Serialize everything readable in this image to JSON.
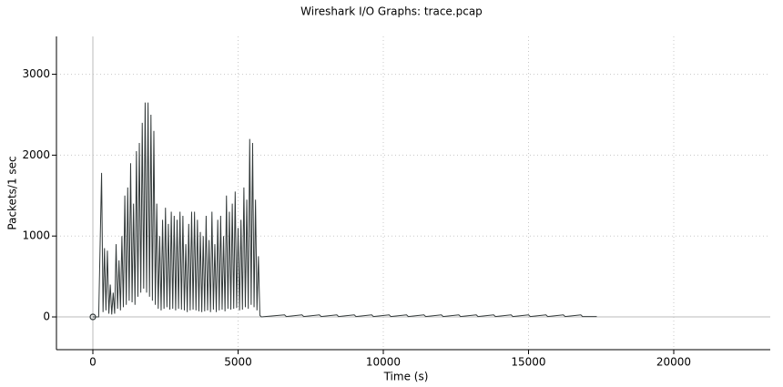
{
  "chart_data": {
    "type": "line",
    "title": "Wireshark I/O Graphs: trace.pcap",
    "xlabel": "Time (s)",
    "ylabel": "Packets/1 sec",
    "x": [
      0,
      200,
      300,
      350,
      400,
      450,
      500,
      550,
      600,
      650,
      700,
      750,
      800,
      850,
      900,
      950,
      1000,
      1050,
      1100,
      1150,
      1200,
      1250,
      1300,
      1350,
      1400,
      1450,
      1500,
      1550,
      1600,
      1650,
      1700,
      1750,
      1800,
      1850,
      1900,
      1950,
      2000,
      2050,
      2100,
      2150,
      2200,
      2250,
      2300,
      2350,
      2400,
      2450,
      2500,
      2550,
      2600,
      2650,
      2700,
      2750,
      2800,
      2850,
      2900,
      2950,
      3000,
      3050,
      3100,
      3150,
      3200,
      3250,
      3300,
      3350,
      3400,
      3450,
      3500,
      3550,
      3600,
      3650,
      3700,
      3750,
      3800,
      3850,
      3900,
      3950,
      4000,
      4050,
      4100,
      4150,
      4200,
      4250,
      4300,
      4350,
      4400,
      4450,
      4500,
      4550,
      4600,
      4650,
      4700,
      4750,
      4800,
      4850,
      4900,
      4950,
      5000,
      5050,
      5100,
      5150,
      5200,
      5250,
      5300,
      5350,
      5400,
      5450,
      5500,
      5550,
      5600,
      5650,
      5700,
      5750,
      5800,
      6600,
      6660,
      7200,
      7260,
      7800,
      7860,
      8400,
      8460,
      9000,
      9060,
      9600,
      9660,
      10200,
      10260,
      10800,
      10860,
      11400,
      11460,
      12000,
      12060,
      12600,
      12660,
      13200,
      13260,
      13800,
      13860,
      14400,
      14460,
      15000,
      15060,
      15600,
      15660,
      16200,
      16260,
      16800,
      16860,
      17350
    ],
    "series": [
      {
        "color": "#333a3a",
        "values": [
          0,
          0,
          1780,
          60,
          850,
          80,
          820,
          40,
          400,
          30,
          300,
          40,
          900,
          100,
          700,
          80,
          1000,
          120,
          1500,
          150,
          1600,
          200,
          1900,
          180,
          1400,
          150,
          2050,
          250,
          2150,
          300,
          2400,
          350,
          2650,
          300,
          2650,
          250,
          2500,
          200,
          2300,
          150,
          1400,
          100,
          1000,
          80,
          1200,
          100,
          1350,
          120,
          1150,
          90,
          1300,
          100,
          1250,
          80,
          1200,
          100,
          1300,
          90,
          1250,
          80,
          900,
          60,
          1150,
          80,
          1300,
          90,
          1300,
          80,
          1200,
          70,
          1050,
          60,
          1000,
          70,
          1250,
          80,
          950,
          60,
          1300,
          90,
          900,
          60,
          1200,
          80,
          1250,
          90,
          1000,
          70,
          1500,
          100,
          1300,
          90,
          1400,
          100,
          1550,
          110,
          1100,
          80,
          1200,
          90,
          1600,
          120,
          1450,
          100,
          2200,
          150,
          2150,
          120,
          1450,
          80,
          750,
          20,
          0,
          25,
          5,
          25,
          5,
          25,
          5,
          25,
          5,
          25,
          5,
          25,
          5,
          25,
          5,
          25,
          5,
          25,
          5,
          25,
          5,
          25,
          5,
          25,
          5,
          25,
          5,
          25,
          5,
          25,
          5,
          25,
          5,
          25,
          5,
          25,
          5,
          5
        ]
      }
    ],
    "xlim": [
      -1254,
      23323
    ],
    "ylim": [
      -405,
      3468
    ],
    "xticks": [
      0,
      5000,
      10000,
      15000,
      20000
    ],
    "yticks": [
      0,
      1000,
      2000,
      3000
    ],
    "grid": true
  }
}
